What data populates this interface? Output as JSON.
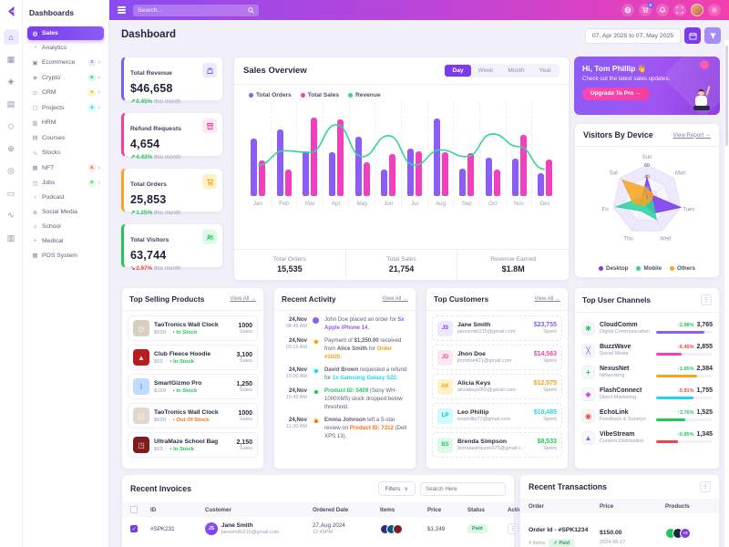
{
  "theme": {
    "accent": "#7c3aed",
    "header_gradient_from": "#8a4cf0",
    "header_gradient_to": "#f33fae",
    "content_bg": "#f1eff7",
    "positive": "#22c55e",
    "negative": "#ef4444"
  },
  "sidebar": {
    "title": "Dashboards",
    "items": [
      {
        "label": "Sales",
        "active": true
      },
      {
        "label": "Analytics"
      },
      {
        "label": "Ecommerce",
        "badge": "3",
        "badge_fg": "#8b5cf6",
        "badge_bg": "#ede9fe",
        "expandable": true
      },
      {
        "label": "Crypto",
        "badge": "6",
        "badge_fg": "#10b981",
        "badge_bg": "#d1fae5",
        "expandable": true
      },
      {
        "label": "CRM",
        "badge": "5",
        "badge_fg": "#f59e0b",
        "badge_bg": "#fef3c7",
        "expandable": true
      },
      {
        "label": "Projects",
        "badge": "4",
        "badge_fg": "#06b6d4",
        "badge_bg": "#cffafe",
        "expandable": true
      },
      {
        "label": "HRM"
      },
      {
        "label": "Courses"
      },
      {
        "label": "Stocks"
      },
      {
        "label": "NFT",
        "badge": "6",
        "badge_fg": "#ef4444",
        "badge_bg": "#fee2e2",
        "expandable": true
      },
      {
        "label": "Jobs",
        "badge": "8",
        "badge_fg": "#22c55e",
        "badge_bg": "#dcfce7",
        "expandable": true
      },
      {
        "label": "Podcast"
      },
      {
        "label": "Social Media"
      },
      {
        "label": "School"
      },
      {
        "label": "Medical"
      },
      {
        "label": "POS System"
      }
    ]
  },
  "header": {
    "search_placeholder": "Search...",
    "cart_badge": "5"
  },
  "page": {
    "title": "Dashboard",
    "date_range": "07, Apr 2025 to 07, May 2025"
  },
  "metrics": [
    {
      "label": "Total Revenue",
      "value": "$46,658",
      "delta": "0.45%",
      "note": "this month",
      "accent": "#7c5cfa",
      "icon_bg": "#ede9fe",
      "icon_color": "#7c5cfa",
      "delta_color": "#22c55e"
    },
    {
      "label": "Refund Requests",
      "value": "4,654",
      "delta": "4.43%",
      "note": "this month",
      "accent": "#f23f9d",
      "icon_bg": "#fce7f3",
      "icon_color": "#f23f9d",
      "delta_color": "#22c55e"
    },
    {
      "label": "Total Orders",
      "value": "25,853",
      "delta": "1.25%",
      "note": "this month",
      "accent": "#f5a623",
      "icon_bg": "#fef3c7",
      "icon_color": "#f5a623",
      "delta_color": "#22c55e"
    },
    {
      "label": "Total Visitors",
      "value": "63,744",
      "delta": "2.97%",
      "note": "this month",
      "accent": "#22c55e",
      "icon_bg": "#dcfce7",
      "icon_color": "#22c55e",
      "delta_color": "#ef4444"
    }
  ],
  "sales_overview": {
    "title": "Sales Overview",
    "tabs": [
      "Day",
      "Week",
      "Month",
      "Year"
    ],
    "active_tab": "Day",
    "footer": [
      {
        "label": "Total Orders",
        "value": "15,535"
      },
      {
        "label": "Total Sales",
        "value": "21,754"
      },
      {
        "label": "Revenue Earned",
        "value": "$1.8M"
      }
    ]
  },
  "promo": {
    "greeting": "Hi, Tom Phillip",
    "emoji": "👋",
    "message": "Check out the latest sales updates.",
    "cta": "Upgrade To Pro →"
  },
  "visitors": {
    "title": "Visitors By Device",
    "link": "View Report →",
    "legend": [
      {
        "label": "Desktop",
        "color": "#7c3aed"
      },
      {
        "label": "Mobile",
        "color": "#2dd4a0"
      },
      {
        "label": "Others",
        "color": "#f5a623"
      }
    ]
  },
  "top_products": {
    "title": "Top Selling Products",
    "link": "View All →",
    "items": [
      {
        "name": "TaoTronics Wall Clock",
        "price": "$699",
        "stock": "In Stock",
        "stock_color": "#22c55e",
        "sales": "1000",
        "unit": "Sales",
        "thumb_bg": "#d8cfbf"
      },
      {
        "name": "Club Fleece Hoodie",
        "price": "$55",
        "stock": "In Stock",
        "stock_color": "#22c55e",
        "sales": "3,100",
        "unit": "Sales",
        "thumb_bg": "#b91c1c"
      },
      {
        "name": "SmartGizmo Pro",
        "price": "$169",
        "stock": "In Stock",
        "stock_color": "#22c55e",
        "sales": "1,250",
        "unit": "Sales",
        "thumb_bg": "#bfdbfe"
      },
      {
        "name": "TaoTronics Wall Clock",
        "price": "$699",
        "stock": "Out Of Stock",
        "stock_color": "#f97316",
        "sales": "1000",
        "unit": "Sales",
        "thumb_bg": "#e0d8cc"
      },
      {
        "name": "UltraMaze School Bag",
        "price": "$69",
        "stock": "In Stock",
        "stock_color": "#22c55e",
        "sales": "2,150",
        "unit": "Sales",
        "thumb_bg": "#7f1d1d"
      }
    ]
  },
  "recent_activity": {
    "title": "Recent Activity",
    "link": "View All →",
    "items": [
      {
        "date": "24,Nov",
        "time": "08:45 AM",
        "dot": "#8b5cf6",
        "segments": [
          {
            "t": "John Doe placed an order for "
          },
          {
            "t": "5x Apple iPhone 14",
            "c": "#8b5cf6",
            "w": "700"
          },
          {
            "t": "."
          }
        ]
      },
      {
        "date": "24,Nov",
        "time": "09:15 AM",
        "dot": "#f59e0b",
        "segments": [
          {
            "t": "Payment of "
          },
          {
            "t": "$1,250.00",
            "w": "700"
          },
          {
            "t": " received from "
          },
          {
            "t": "Alice Smith",
            "w": "700"
          },
          {
            "t": " for "
          },
          {
            "t": "Order #1020",
            "c": "#f59e0b",
            "w": "700"
          },
          {
            "t": "."
          }
        ]
      },
      {
        "date": "24,Nov",
        "time": "10:00 AM",
        "dot": "#22d3ee",
        "segments": [
          {
            "t": "David Brown",
            "w": "700"
          },
          {
            "t": " requested a refund for "
          },
          {
            "t": "1x Samsung Galaxy S22",
            "c": "#22d3ee",
            "w": "700"
          },
          {
            "t": "."
          }
        ]
      },
      {
        "date": "24,Nov",
        "time": "10:45 AM",
        "dot": "#22c55e",
        "segments": [
          {
            "t": "Product ID: 5409",
            "c": "#22c55e",
            "w": "700"
          },
          {
            "t": " (Sony WH-1000XM5) stock dropped below threshold."
          }
        ]
      },
      {
        "date": "24,Nov",
        "time": "11:30 AM",
        "dot": "#f97316",
        "segments": [
          {
            "t": "Emma Johnson",
            "w": "700"
          },
          {
            "t": " left a 5-star review on "
          },
          {
            "t": "Product ID: 7312",
            "c": "#f97316",
            "w": "700"
          },
          {
            "t": " (Dell XPS 13)."
          }
        ]
      }
    ]
  },
  "top_customers": {
    "title": "Top Customers",
    "link": "View All →",
    "unit": "Spent",
    "items": [
      {
        "initials": "JS",
        "name": "Jane Smith",
        "email": "janesmith215@gmail.com",
        "amount": "$23,755",
        "color": "#7c3aed",
        "bg": "#ede9fe",
        "amount_color": "#8b5cf6"
      },
      {
        "initials": "JD",
        "name": "Jhon Doe",
        "email": "jhondoe421@gmail.com",
        "amount": "$14,563",
        "color": "#ec4899",
        "bg": "#fce7f3",
        "amount_color": "#ec4899"
      },
      {
        "initials": "AK",
        "name": "Alicia Keys",
        "email": "aliciakeys965@gmail.com",
        "amount": "$12,075",
        "color": "#f59e0b",
        "bg": "#fef3c7",
        "amount_color": "#f59e0b"
      },
      {
        "initials": "LP",
        "name": "Leo Phillip",
        "email": "leophillip77@gmail.com",
        "amount": "$10,485",
        "color": "#06b6d4",
        "bg": "#cffafe",
        "amount_color": "#22d3ee"
      },
      {
        "initials": "BS",
        "name": "Brenda Simpson",
        "email": "brendasimpson075@gmail.com",
        "amount": "$8,533",
        "color": "#22c55e",
        "bg": "#dcfce7",
        "amount_color": "#22c55e"
      }
    ]
  },
  "top_channels": {
    "title": "Top User Channels",
    "items": [
      {
        "name": "CloudComm",
        "category": "Digital Communication",
        "delta": "2.98%",
        "dir": "up",
        "delta_color": "#22c55e",
        "count": "3,765",
        "bar": "85%",
        "color": "#8b5cf6",
        "icon_color": "#22c55e"
      },
      {
        "name": "BuzzWave",
        "category": "Social Media",
        "delta": "6.45%",
        "dir": "down",
        "delta_color": "#ef4444",
        "count": "2,855",
        "bar": "45%",
        "color": "#f23fc0",
        "icon_color": "#6366f1"
      },
      {
        "name": "NexusNet",
        "category": "Networking",
        "delta": "1.95%",
        "dir": "up",
        "delta_color": "#22c55e",
        "count": "2,384",
        "bar": "72%",
        "color": "#f5a623",
        "icon_color": "#10b981"
      },
      {
        "name": "FlashConnect",
        "category": "Direct Marketing",
        "delta": "5.91%",
        "dir": "down",
        "delta_color": "#ef4444",
        "count": "1,755",
        "bar": "66%",
        "color": "#22d3ee",
        "icon_color": "#d946ef"
      },
      {
        "name": "EchoLink",
        "category": "Feedback & Surveys",
        "delta": "3.76%",
        "dir": "up",
        "delta_color": "#22c55e",
        "count": "1,525",
        "bar": "52%",
        "color": "#22c55e",
        "icon_color": "#ef4444"
      },
      {
        "name": "VibeStream",
        "category": "Content Distribution",
        "delta": "0.95%",
        "dir": "up",
        "delta_color": "#22c55e",
        "count": "1,345",
        "bar": "38%",
        "color": "#ef4444",
        "icon_color": "#8b5cf6"
      }
    ]
  },
  "invoices": {
    "title": "Recent Invoices",
    "filters_label": "Filters",
    "search_placeholder": "Search Here",
    "columns": [
      "ID",
      "Customer",
      "Ordered Date",
      "Items",
      "Price",
      "Status",
      "Actions"
    ],
    "rows": [
      {
        "id": "#SPK231",
        "initials": "JS",
        "customer": "Jane Smith",
        "email": "janesmith215@gmail.com",
        "date": "27,Aug 2024",
        "time": "12:45PM",
        "price": "$1,249",
        "status": "Paid"
      }
    ]
  },
  "transactions": {
    "title": "Recent Transactions",
    "columns": [
      "Order",
      "Price",
      "Products"
    ],
    "rows": [
      {
        "order": "Order Id - #SPK1234",
        "items": "4 Items",
        "status": "✓ Paid",
        "price": "$150.00",
        "date": "2024-08-27",
        "extra": "+2"
      }
    ]
  },
  "chart_data": [
    {
      "id": "sales-overview",
      "type": "bar",
      "categories": [
        "Jan",
        "Feb",
        "Mar",
        "Apr",
        "May",
        "Jun",
        "Jul",
        "Aug",
        "Sep",
        "Oct",
        "Nov",
        "Dec"
      ],
      "series": [
        {
          "name": "Total Orders",
          "type": "bar",
          "color": "#8b5cf6",
          "values": [
            68,
            79,
            53,
            52,
            71,
            32,
            56,
            92,
            33,
            46,
            45,
            27
          ]
        },
        {
          "name": "Total Sales",
          "type": "bar",
          "color": "#f23fc0",
          "values": [
            42,
            32,
            94,
            91,
            40,
            50,
            53,
            52,
            51,
            31,
            73,
            43
          ]
        },
        {
          "name": "Revenue",
          "type": "line",
          "color": "#34d399",
          "values": [
            25,
            42,
            40,
            73,
            35,
            60,
            25,
            43,
            35,
            62,
            47,
            20
          ]
        }
      ],
      "ylim": [
        0,
        100
      ],
      "legend_position": "top-left",
      "grid": "vertical-dashed"
    },
    {
      "id": "visitors-by-device",
      "type": "radar",
      "categories": [
        "Sun",
        "Mon",
        "Tues",
        "Wed",
        "Thu",
        "Fri",
        "Sat"
      ],
      "ticks": [
        0,
        20,
        40,
        60
      ],
      "series": [
        {
          "name": "Desktop",
          "color": "#7c3aed",
          "values": [
            38,
            12,
            60,
            26,
            8,
            12,
            10
          ]
        },
        {
          "name": "Mobile",
          "color": "#2dd4a0",
          "values": [
            8,
            6,
            10,
            38,
            22,
            55,
            8
          ]
        },
        {
          "name": "Others",
          "color": "#f5a623",
          "values": [
            20,
            14,
            8,
            6,
            12,
            25,
            55
          ]
        }
      ]
    }
  ]
}
